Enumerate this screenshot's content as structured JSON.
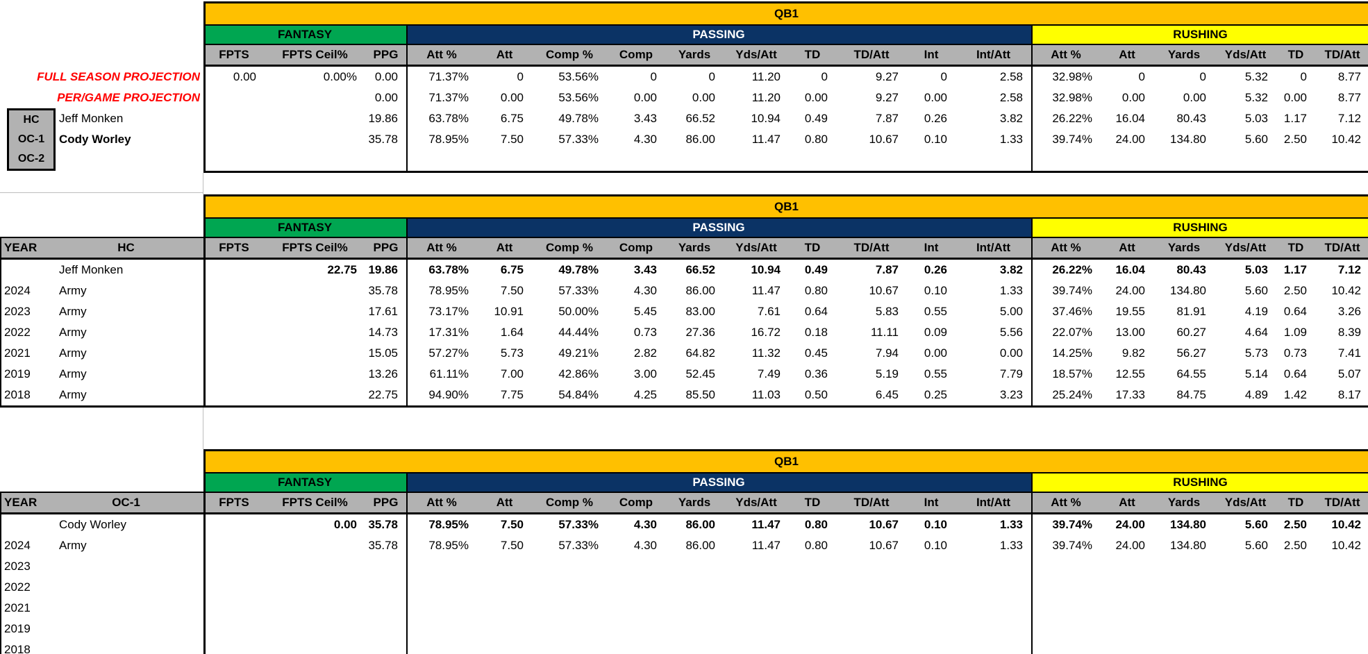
{
  "sheet": {
    "position_label": "QB1",
    "group_labels": {
      "fantasy": "FANTASY",
      "passing": "PASSING",
      "rushing": "RUSHING"
    },
    "stat_headers": [
      "FPTS",
      "FPTS Ceil%",
      "PPG",
      "Att %",
      "Att",
      "Comp %",
      "Comp",
      "Yards",
      "Yds/Att",
      "TD",
      "TD/Att",
      "Int",
      "Int/Att",
      "Att %",
      "Att",
      "Yards",
      "Yds/Att",
      "TD",
      "TD/Att"
    ],
    "colors": {
      "gold": "#FFC000",
      "green": "#00A651",
      "navy": "#0B3365",
      "yellow": "#FFFF00",
      "header_gray": "#B2B2B2",
      "red": "#FF0000"
    }
  },
  "projection_panel": {
    "full_season_label": "FULL SEASON PROJECTION",
    "per_game_label": "PER/GAME PROJECTION",
    "coach_slots": [
      {
        "role": "HC",
        "name": "Jeff Monken",
        "bold": false
      },
      {
        "role": "OC-1",
        "name": "Cody Worley",
        "bold": true
      },
      {
        "role": "OC-2",
        "name": "",
        "bold": false
      }
    ]
  },
  "projection_table": {
    "rows": [
      {
        "values": [
          "0.00",
          "0.00%",
          "0.00",
          "71.37%",
          "0",
          "53.56%",
          "0",
          "0",
          "11.20",
          "0",
          "9.27",
          "0",
          "2.58",
          "32.98%",
          "0",
          "0",
          "5.32",
          "0",
          "8.77"
        ]
      },
      {
        "values": [
          "",
          "",
          "0.00",
          "71.37%",
          "0.00",
          "53.56%",
          "0.00",
          "0.00",
          "11.20",
          "0.00",
          "9.27",
          "0.00",
          "2.58",
          "32.98%",
          "0.00",
          "0.00",
          "5.32",
          "0.00",
          "8.77"
        ]
      },
      {
        "values": [
          "",
          "",
          "19.86",
          "63.78%",
          "6.75",
          "49.78%",
          "3.43",
          "66.52",
          "10.94",
          "0.49",
          "7.87",
          "0.26",
          "3.82",
          "26.22%",
          "16.04",
          "80.43",
          "5.03",
          "1.17",
          "7.12"
        ]
      },
      {
        "values": [
          "",
          "",
          "35.78",
          "78.95%",
          "7.50",
          "57.33%",
          "4.30",
          "86.00",
          "11.47",
          "0.80",
          "10.67",
          "0.10",
          "1.33",
          "39.74%",
          "24.00",
          "134.80",
          "5.60",
          "2.50",
          "10.42"
        ]
      },
      {
        "values": []
      }
    ]
  },
  "hc_table": {
    "year_header": "YEAR",
    "coach_header": "HC",
    "rows": [
      {
        "year": "",
        "name": "Jeff Monken",
        "bold": true,
        "values": [
          "",
          "22.75",
          "19.86",
          "63.78%",
          "6.75",
          "49.78%",
          "3.43",
          "66.52",
          "10.94",
          "0.49",
          "7.87",
          "0.26",
          "3.82",
          "26.22%",
          "16.04",
          "80.43",
          "5.03",
          "1.17",
          "7.12"
        ]
      },
      {
        "year": "2024",
        "name": "Army",
        "bold": false,
        "values": [
          "",
          "",
          "35.78",
          "78.95%",
          "7.50",
          "57.33%",
          "4.30",
          "86.00",
          "11.47",
          "0.80",
          "10.67",
          "0.10",
          "1.33",
          "39.74%",
          "24.00",
          "134.80",
          "5.60",
          "2.50",
          "10.42"
        ]
      },
      {
        "year": "2023",
        "name": "Army",
        "bold": false,
        "values": [
          "",
          "",
          "17.61",
          "73.17%",
          "10.91",
          "50.00%",
          "5.45",
          "83.00",
          "7.61",
          "0.64",
          "5.83",
          "0.55",
          "5.00",
          "37.46%",
          "19.55",
          "81.91",
          "4.19",
          "0.64",
          "3.26"
        ]
      },
      {
        "year": "2022",
        "name": "Army",
        "bold": false,
        "values": [
          "",
          "",
          "14.73",
          "17.31%",
          "1.64",
          "44.44%",
          "0.73",
          "27.36",
          "16.72",
          "0.18",
          "11.11",
          "0.09",
          "5.56",
          "22.07%",
          "13.00",
          "60.27",
          "4.64",
          "1.09",
          "8.39"
        ]
      },
      {
        "year": "2021",
        "name": "Army",
        "bold": false,
        "values": [
          "",
          "",
          "15.05",
          "57.27%",
          "5.73",
          "49.21%",
          "2.82",
          "64.82",
          "11.32",
          "0.45",
          "7.94",
          "0.00",
          "0.00",
          "14.25%",
          "9.82",
          "56.27",
          "5.73",
          "0.73",
          "7.41"
        ]
      },
      {
        "year": "2019",
        "name": "Army",
        "bold": false,
        "values": [
          "",
          "",
          "13.26",
          "61.11%",
          "7.00",
          "42.86%",
          "3.00",
          "52.45",
          "7.49",
          "0.36",
          "5.19",
          "0.55",
          "7.79",
          "18.57%",
          "12.55",
          "64.55",
          "5.14",
          "0.64",
          "5.07"
        ]
      },
      {
        "year": "2018",
        "name": "Army",
        "bold": false,
        "values": [
          "",
          "",
          "22.75",
          "94.90%",
          "7.75",
          "54.84%",
          "4.25",
          "85.50",
          "11.03",
          "0.50",
          "6.45",
          "0.25",
          "3.23",
          "25.24%",
          "17.33",
          "84.75",
          "4.89",
          "1.42",
          "8.17"
        ]
      }
    ]
  },
  "oc1_table": {
    "year_header": "YEAR",
    "coach_header": "OC-1",
    "rows": [
      {
        "year": "",
        "name": "Cody Worley",
        "bold": true,
        "values": [
          "",
          "0.00",
          "35.78",
          "78.95%",
          "7.50",
          "57.33%",
          "4.30",
          "86.00",
          "11.47",
          "0.80",
          "10.67",
          "0.10",
          "1.33",
          "39.74%",
          "24.00",
          "134.80",
          "5.60",
          "2.50",
          "10.42"
        ]
      },
      {
        "year": "2024",
        "name": "Army",
        "bold": false,
        "values": [
          "",
          "",
          "35.78",
          "78.95%",
          "7.50",
          "57.33%",
          "4.30",
          "86.00",
          "11.47",
          "0.80",
          "10.67",
          "0.10",
          "1.33",
          "39.74%",
          "24.00",
          "134.80",
          "5.60",
          "2.50",
          "10.42"
        ]
      },
      {
        "year": "2023",
        "name": "",
        "bold": false,
        "values": []
      },
      {
        "year": "2022",
        "name": "",
        "bold": false,
        "values": []
      },
      {
        "year": "2021",
        "name": "",
        "bold": false,
        "values": []
      },
      {
        "year": "2019",
        "name": "",
        "bold": false,
        "values": []
      },
      {
        "year": "2018",
        "name": "",
        "bold": false,
        "values": []
      }
    ]
  }
}
